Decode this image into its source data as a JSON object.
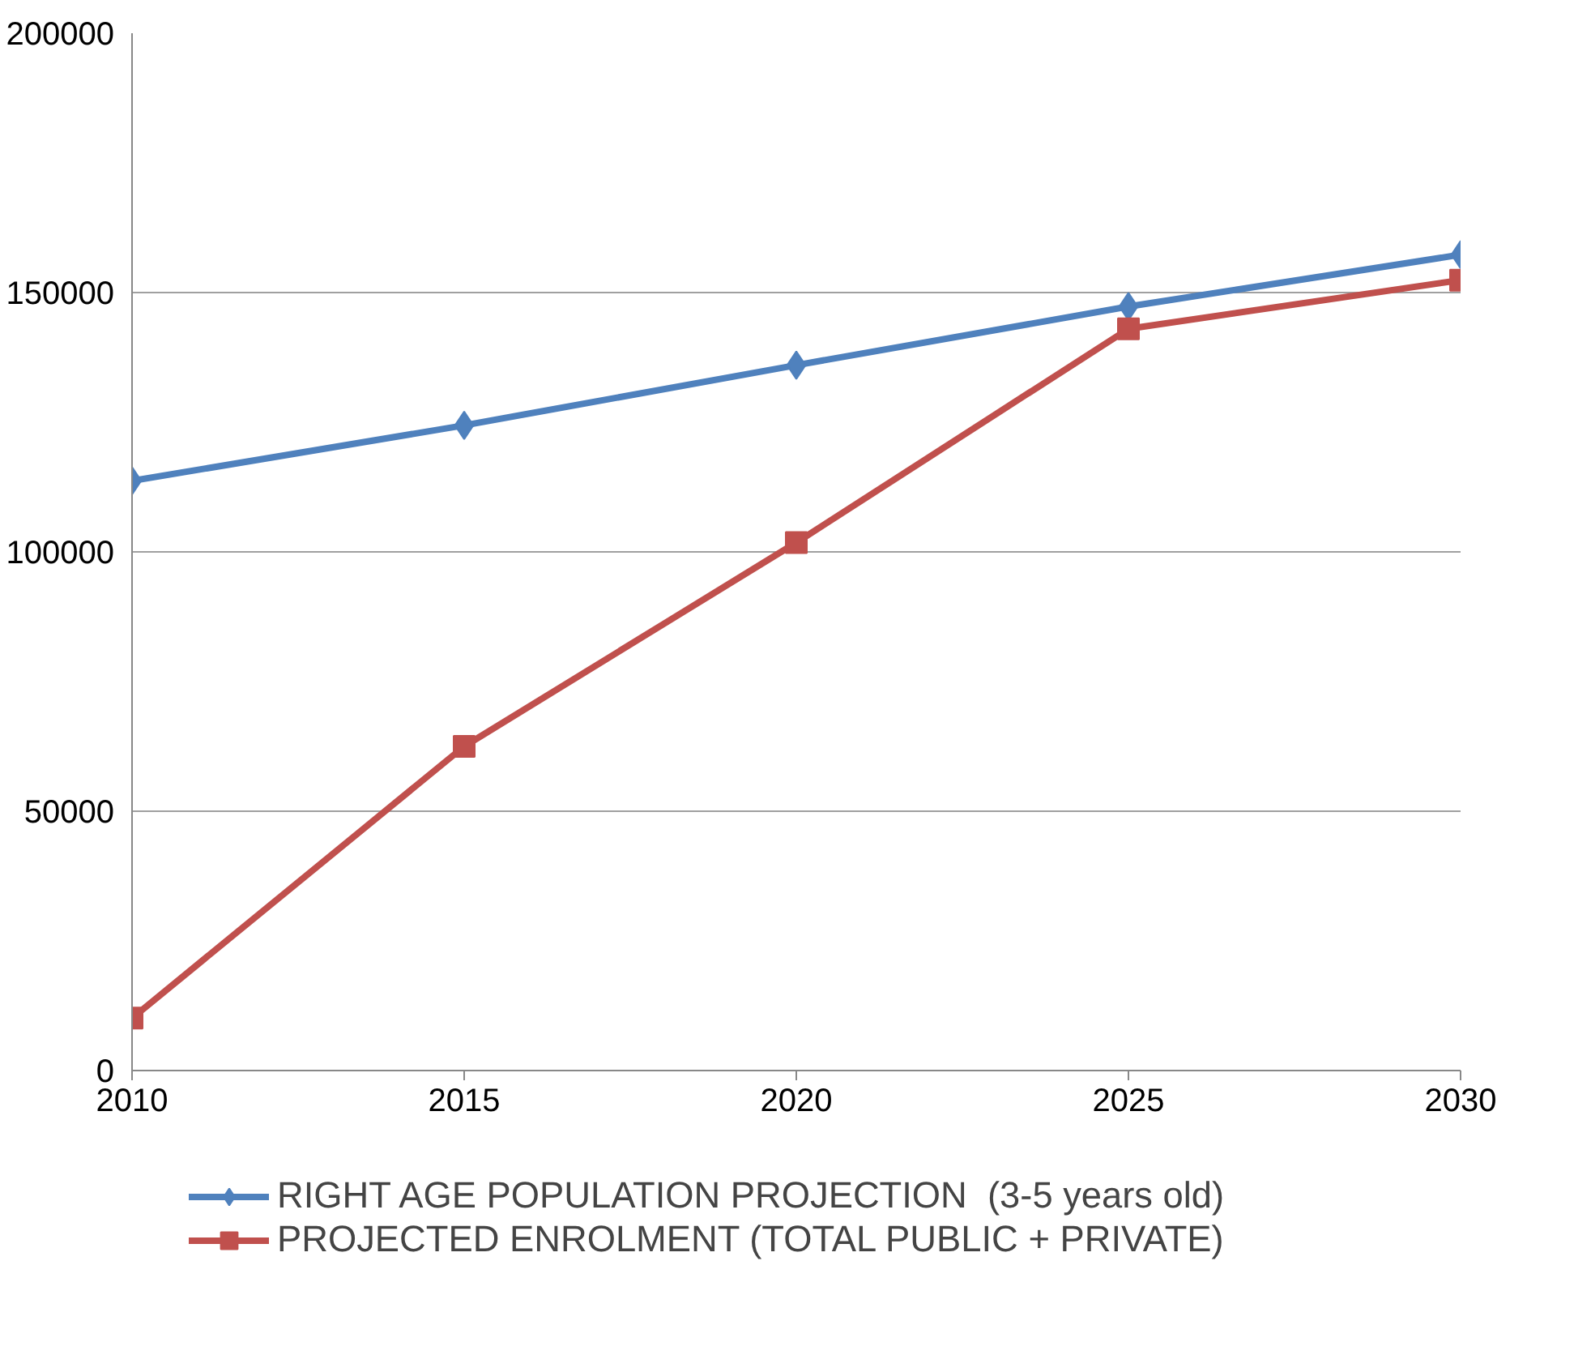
{
  "chart_data": {
    "type": "line",
    "x": [
      2010,
      2015,
      2020,
      2025,
      2030
    ],
    "series": [
      {
        "name": "RIGHT AGE POPULATION PROJECTION  (3-5 years old)",
        "color": "#4f81bd",
        "marker": "diamond",
        "values": [
          113700,
          124400,
          136000,
          147300,
          157300
        ]
      },
      {
        "name": "PROJECTED ENROLMENT (TOTAL PUBLIC + PRIVATE)",
        "color": "#c0504d",
        "marker": "square",
        "values": [
          10100,
          62500,
          101800,
          143000,
          152400
        ]
      }
    ],
    "xlim": [
      2010,
      2030
    ],
    "xticks": [
      2010,
      2015,
      2020,
      2025,
      2030
    ],
    "ylim": [
      0,
      200000
    ],
    "yticks": [
      0,
      50000,
      100000,
      150000,
      200000
    ],
    "grid": "y",
    "legend": "bottom",
    "line_style": "solid"
  }
}
